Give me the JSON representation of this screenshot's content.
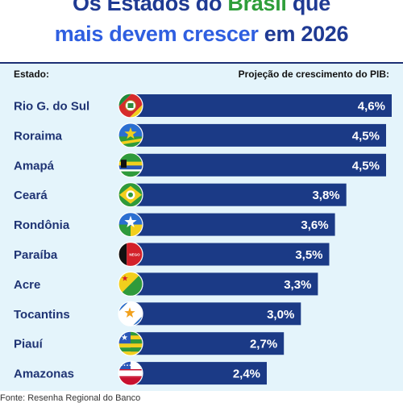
{
  "header": {
    "title_line1_before": "Os Estados do ",
    "title_line1_accent": "Brasil",
    "title_line1_after": " que",
    "title_line2_accent": "mais devem crescer",
    "title_line2_after": " em 2026"
  },
  "columns": {
    "state": "Estado:",
    "pib": "Projeção de crescimento do PIB:"
  },
  "source": "Fonte: Resenha Regional do Banco",
  "chart_data": {
    "type": "bar",
    "orientation": "horizontal",
    "title": "Os Estados do Brasil que mais devem crescer em 2026",
    "xlabel": "Projeção de crescimento do PIB:",
    "ylabel": "Estado:",
    "categories": [
      "Rio G. do Sul",
      "Roraima",
      "Amapá",
      "Ceará",
      "Rondônia",
      "Paraíba",
      "Acre",
      "Tocantins",
      "Piauí",
      "Amazonas"
    ],
    "values": [
      4.6,
      4.5,
      4.5,
      3.8,
      3.6,
      3.5,
      3.3,
      3.0,
      2.7,
      2.4
    ],
    "value_labels": [
      "4,6%",
      "4,5%",
      "4,5%",
      "3,8%",
      "3,6%",
      "3,5%",
      "3,3%",
      "3,0%",
      "2,7%",
      "2,4%"
    ],
    "flags": [
      "flag-rio-grande-do-sul-icon",
      "flag-roraima-icon",
      "flag-amapa-icon",
      "flag-ceara-icon",
      "flag-rondonia-icon",
      "flag-paraiba-icon",
      "flag-acre-icon",
      "flag-tocantins-icon",
      "flag-piaui-icon",
      "flag-amazonas-icon"
    ],
    "flag_texts": {
      "flag-paraiba-icon": "NEGO"
    },
    "grid": false,
    "legend": "none",
    "colors": {
      "bar": "#1b3a86",
      "title_dark": "#1f3a93",
      "title_green": "#2f9e3a",
      "title_blue": "#2f5fe0",
      "panel": "#e4f4fb"
    }
  }
}
